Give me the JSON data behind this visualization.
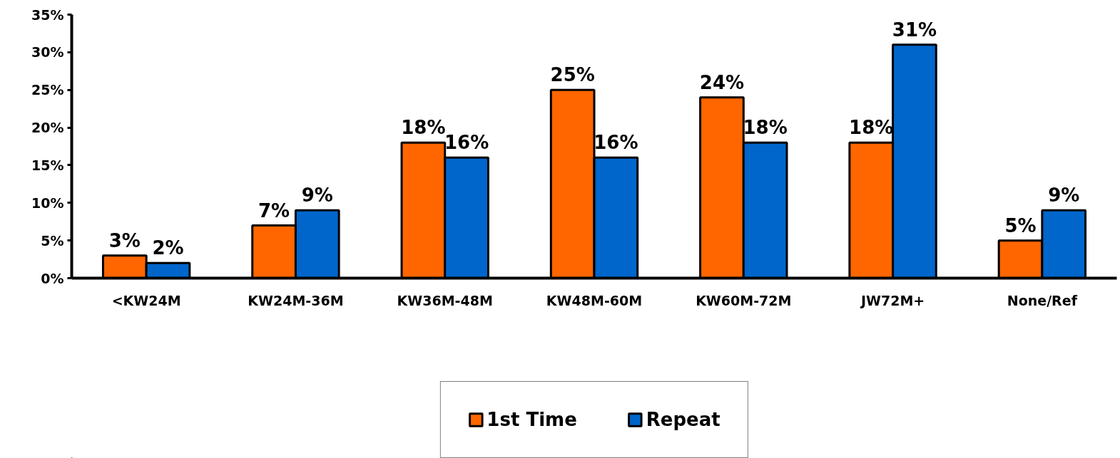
{
  "chart_data": {
    "type": "bar",
    "categories": [
      "<KW24M",
      "KW24M-36M",
      "KW36M-48M",
      "KW48M-60M",
      "KW60M-72M",
      "JW72M+",
      "None/Ref"
    ],
    "series": [
      {
        "name": "1st Time",
        "color": "#ff6600",
        "values": [
          3,
          7,
          18,
          25,
          24,
          18,
          5
        ],
        "value_labels": [
          "3%",
          "7%",
          "18%",
          "25%",
          "24%",
          "18%",
          "5%"
        ]
      },
      {
        "name": "Repeat",
        "color": "#0066cc",
        "values": [
          2,
          9,
          16,
          16,
          18,
          31,
          9
        ],
        "value_labels": [
          "2%",
          "9%",
          "16%",
          "16%",
          "18%",
          "31%",
          "9%"
        ]
      }
    ],
    "ylim": [
      0,
      35
    ],
    "yticks": [
      {
        "value": 0,
        "label": "0%"
      },
      {
        "value": 5,
        "label": "5%"
      },
      {
        "value": 10,
        "label": "10%"
      },
      {
        "value": 15,
        "label": "15%"
      },
      {
        "value": 20,
        "label": "20%"
      },
      {
        "value": 25,
        "label": "25%"
      },
      {
        "value": 30,
        "label": "30%"
      },
      {
        "value": 35,
        "label": "35%"
      }
    ],
    "grid": false,
    "legend": "bottom"
  }
}
